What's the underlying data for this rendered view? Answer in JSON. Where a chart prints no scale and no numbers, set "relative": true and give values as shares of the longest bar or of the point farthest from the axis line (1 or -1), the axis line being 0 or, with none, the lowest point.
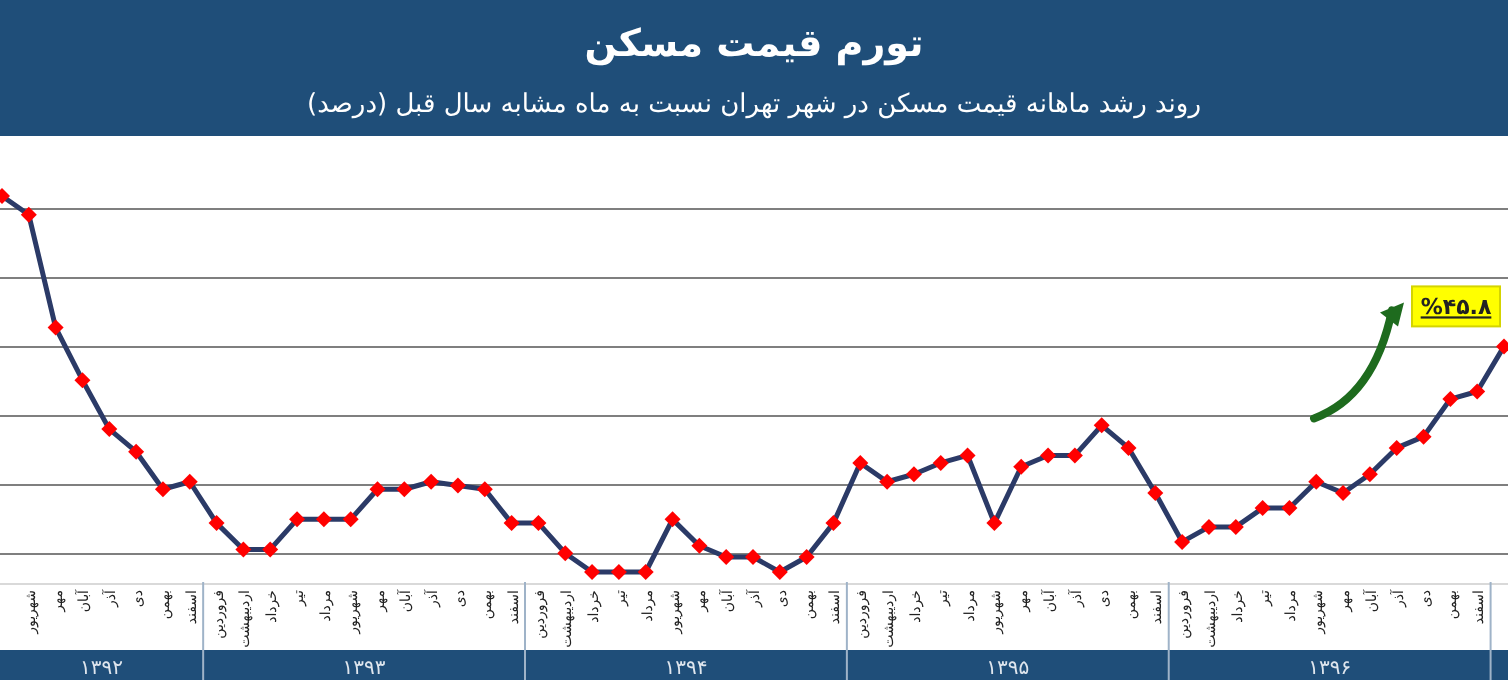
{
  "chart_data": {
    "type": "line",
    "title": "تورم قیمت مسکن",
    "subtitle": "روند رشد ماهانه قیمت مسکن در شهر تهران نسبت به ماه مشابه سال قبل (درصد)",
    "relative": true,
    "grid": "y",
    "marker": "diamond",
    "line_style": "solid",
    "categories": [
      null,
      "شهریور",
      "مهر",
      "آبان",
      "آذر",
      "دی",
      "بهمن",
      "اسفند",
      "فروردین",
      "اردیبهشت",
      "خرداد",
      "تیر",
      "مرداد",
      "شهریور",
      "مهر",
      "آبان",
      "آذر",
      "دی",
      "بهمن",
      "اسفند",
      "فروردین",
      "اردیبهشت",
      "خرداد",
      "تیر",
      "مرداد",
      "شهریور",
      "مهر",
      "آبان",
      "آذر",
      "دی",
      "بهمن",
      "اسفند",
      "فروردین",
      "اردیبهشت",
      "خرداد",
      "تیر",
      "مرداد",
      "شهریور",
      "مهر",
      "آبان",
      "آذر",
      "دی",
      "بهمن",
      "اسفند",
      "فروردین",
      "اردیبهشت",
      "خرداد",
      "تیر",
      "مرداد",
      "شهریور",
      "مهر",
      "آبان",
      "آذر",
      "دی",
      "بهمن",
      "اسفند",
      null
    ],
    "series": [
      {
        "color": "#2b3a67",
        "colors": [
          "#ff0000",
          "#ff0000",
          "#ff0000",
          "#ff0000",
          "#ff0000",
          "#ff0000",
          "#ff0000",
          "#ff0000",
          "#ff0000",
          "#ff0000",
          "#ff0000",
          "#ff0000",
          "#ff0000",
          "#ff0000",
          "#ff0000",
          "#ff0000",
          "#ff0000",
          "#ff0000",
          "#ff0000",
          "#ff0000",
          "#ff0000",
          "#ff0000",
          "#ff0000",
          "#ff0000",
          "#ff0000",
          "#ff0000",
          "#ff0000",
          "#ff0000",
          "#ff0000",
          "#ff0000",
          "#ff0000",
          "#ff0000",
          "#ff0000",
          "#ff0000",
          "#ff0000",
          "#ff0000",
          "#ff0000",
          "#ff0000",
          "#ff0000",
          "#ff0000",
          "#ff0000",
          "#ff0000",
          "#ff0000",
          "#ff0000",
          "#ff0000",
          "#ff0000",
          "#ff0000",
          "#ff0000",
          "#ff0000",
          "#ff0000",
          "#ff0000",
          "#ff0000",
          "#ff0000",
          "#ff0000",
          "#ff0000",
          "#ff0000",
          "#ff0000"
        ],
        "values": [
          1.0,
          0.95,
          0.65,
          0.51,
          0.38,
          0.32,
          0.22,
          0.24,
          0.13,
          0.06,
          0.06,
          0.14,
          0.14,
          0.14,
          0.22,
          0.22,
          0.24,
          0.23,
          0.22,
          0.13,
          0.13,
          0.05,
          0,
          0,
          0,
          0.14,
          0.07,
          0.04,
          0.04,
          0,
          0.04,
          0.13,
          0.29,
          0.24,
          0.26,
          0.29,
          0.31,
          0.13,
          0.28,
          0.31,
          0.31,
          0.39,
          0.33,
          0.21,
          0.08,
          0.12,
          0.12,
          0.17,
          0.17,
          0.24,
          0.21,
          0.26,
          0.33,
          0.36,
          0.46,
          0.48,
          0.6
        ]
      }
    ],
    "annotations": [
      "۱۳۹۲",
      "۱۳۹۳",
      "۱۳۹۴",
      "۱۳۹۵",
      "۱۳۹۶",
      "%۴۵.۸"
    ]
  }
}
